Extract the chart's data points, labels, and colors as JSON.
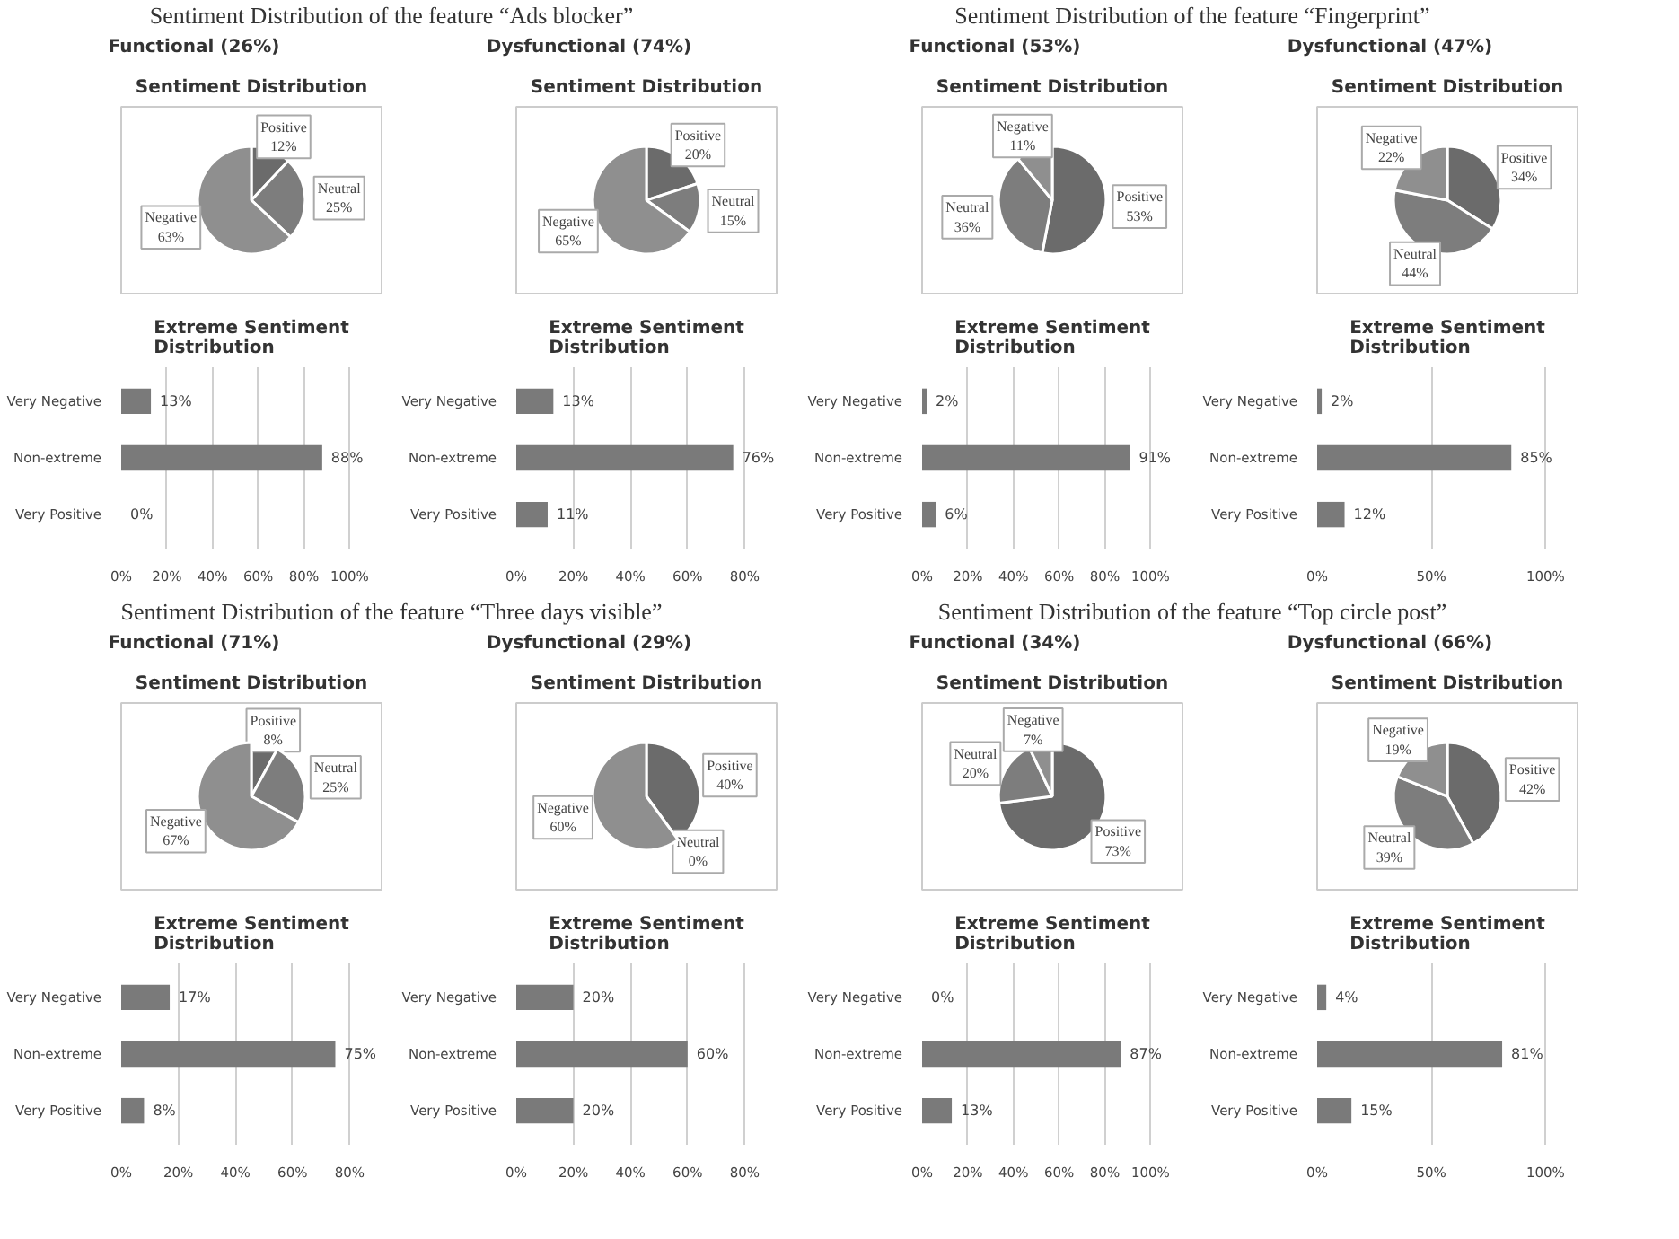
{
  "chart_data": [
    {
      "type": "other",
      "title": "Sentiment Distribution of the feature “Ads blocker”"
    },
    {
      "type": "other",
      "title": "Functional (26%)"
    },
    {
      "type": "pie",
      "title": "Sentiment Distribution",
      "categories": [
        "Positive",
        "Neutral",
        "Negative"
      ],
      "values": [
        12,
        25,
        63
      ],
      "colors": [
        "#6b6b6b",
        "#7d7d7d",
        "#8f8f8f"
      ],
      "value_labels": [
        "12%",
        "25%",
        "63%"
      ]
    },
    {
      "type": "bar",
      "orientation": "horizontal",
      "title": "Extreme Sentiment Distribution",
      "categories": [
        "Very Negative",
        "Non-extreme",
        "Very Positive"
      ],
      "values": [
        13,
        88,
        0
      ],
      "color": "#7a7a7a",
      "value_labels": [
        "13%",
        "88%",
        "0%"
      ],
      "xlim": [
        0,
        100
      ],
      "xticks": [
        {
          "value": 0,
          "label": "0%"
        },
        {
          "value": 20,
          "label": "20%"
        },
        {
          "value": 40,
          "label": "40%"
        },
        {
          "value": 60,
          "label": "60%"
        },
        {
          "value": 80,
          "label": "80%"
        },
        {
          "value": 100,
          "label": "100%"
        }
      ],
      "grid": "x"
    },
    {
      "type": "other",
      "title": "Dysfunctional (74%)"
    },
    {
      "type": "pie",
      "title": "Sentiment Distribution",
      "categories": [
        "Positive",
        "Neutral",
        "Negative"
      ],
      "values": [
        20,
        15,
        65
      ],
      "colors": [
        "#6b6b6b",
        "#7d7d7d",
        "#8f8f8f"
      ],
      "value_labels": [
        "20%",
        "15%",
        "65%"
      ]
    },
    {
      "type": "bar",
      "orientation": "horizontal",
      "title": "Extreme Sentiment Distribution",
      "categories": [
        "Very Negative",
        "Non-extreme",
        "Very Positive"
      ],
      "values": [
        13,
        76,
        11
      ],
      "color": "#7a7a7a",
      "value_labels": [
        "13%",
        "76%",
        "11%"
      ],
      "xlim": [
        0,
        80
      ],
      "xticks": [
        {
          "value": 0,
          "label": "0%"
        },
        {
          "value": 20,
          "label": "20%"
        },
        {
          "value": 40,
          "label": "40%"
        },
        {
          "value": 60,
          "label": "60%"
        },
        {
          "value": 80,
          "label": "80%"
        }
      ],
      "grid": "x"
    },
    {
      "type": "other",
      "title": "Sentiment Distribution of the feature “Fingerprint”"
    },
    {
      "type": "other",
      "title": "Functional (53%)"
    },
    {
      "type": "pie",
      "title": "Sentiment Distribution",
      "categories": [
        "Positive",
        "Neutral",
        "Negative"
      ],
      "values": [
        53,
        36,
        11
      ],
      "colors": [
        "#6b6b6b",
        "#7d7d7d",
        "#8f8f8f"
      ],
      "value_labels": [
        "53%",
        "36%",
        "11%"
      ]
    },
    {
      "type": "bar",
      "orientation": "horizontal",
      "title": "Extreme Sentiment Distribution",
      "categories": [
        "Very Negative",
        "Non-extreme",
        "Very Positive"
      ],
      "values": [
        2,
        91,
        6
      ],
      "color": "#7a7a7a",
      "value_labels": [
        "2%",
        "91%",
        "6%"
      ],
      "xlim": [
        0,
        100
      ],
      "xticks": [
        {
          "value": 0,
          "label": "0%"
        },
        {
          "value": 20,
          "label": "20%"
        },
        {
          "value": 40,
          "label": "40%"
        },
        {
          "value": 60,
          "label": "60%"
        },
        {
          "value": 80,
          "label": "80%"
        },
        {
          "value": 100,
          "label": "100%"
        }
      ],
      "grid": "x"
    },
    {
      "type": "other",
      "title": "Dysfunctional (47%)"
    },
    {
      "type": "pie",
      "title": "Sentiment Distribution",
      "categories": [
        "Positive",
        "Neutral",
        "Negative"
      ],
      "values": [
        34,
        44,
        22
      ],
      "colors": [
        "#6b6b6b",
        "#7d7d7d",
        "#8f8f8f"
      ],
      "value_labels": [
        "34%",
        "44%",
        "22%"
      ]
    },
    {
      "type": "bar",
      "orientation": "horizontal",
      "title": "Extreme Sentiment Distribution",
      "categories": [
        "Very Negative",
        "Non-extreme",
        "Very Positive"
      ],
      "values": [
        2,
        85,
        12
      ],
      "color": "#7a7a7a",
      "value_labels": [
        "2%",
        "85%",
        "12%"
      ],
      "xlim": [
        0,
        100
      ],
      "xticks": [
        {
          "value": 0,
          "label": "0%"
        },
        {
          "value": 50,
          "label": "50%"
        },
        {
          "value": 100,
          "label": "100%"
        }
      ],
      "grid": "x"
    },
    {
      "type": "other",
      "title": "Sentiment Distribution of the feature “Three days visible”"
    },
    {
      "type": "other",
      "title": "Functional (71%)"
    },
    {
      "type": "pie",
      "title": "Sentiment Distribution",
      "categories": [
        "Positive",
        "Neutral",
        "Negative"
      ],
      "values": [
        8,
        25,
        67
      ],
      "colors": [
        "#6b6b6b",
        "#7d7d7d",
        "#8f8f8f"
      ],
      "value_labels": [
        "8%",
        "25%",
        "67%"
      ]
    },
    {
      "type": "bar",
      "orientation": "horizontal",
      "title": "Extreme Sentiment Distribution",
      "categories": [
        "Very Negative",
        "Non-extreme",
        "Very Positive"
      ],
      "values": [
        17,
        75,
        8
      ],
      "color": "#7a7a7a",
      "value_labels": [
        "17%",
        "75%",
        "8%"
      ],
      "xlim": [
        0,
        80
      ],
      "xticks": [
        {
          "value": 0,
          "label": "0%"
        },
        {
          "value": 20,
          "label": "20%"
        },
        {
          "value": 40,
          "label": "40%"
        },
        {
          "value": 60,
          "label": "60%"
        },
        {
          "value": 80,
          "label": "80%"
        }
      ],
      "grid": "x"
    },
    {
      "type": "other",
      "title": "Dysfunctional (29%)"
    },
    {
      "type": "pie",
      "title": "Sentiment Distribution",
      "categories": [
        "Positive",
        "Neutral",
        "Negative"
      ],
      "values": [
        40,
        0,
        60
      ],
      "colors": [
        "#6b6b6b",
        "#7d7d7d",
        "#8f8f8f"
      ],
      "value_labels": [
        "40%",
        "0%",
        "60%"
      ]
    },
    {
      "type": "bar",
      "orientation": "horizontal",
      "title": "Extreme Sentiment Distribution",
      "categories": [
        "Very Negative",
        "Non-extreme",
        "Very Positive"
      ],
      "values": [
        20,
        60,
        20
      ],
      "color": "#7a7a7a",
      "value_labels": [
        "20%",
        "60%",
        "20%"
      ],
      "xlim": [
        0,
        80
      ],
      "xticks": [
        {
          "value": 0,
          "label": "0%"
        },
        {
          "value": 20,
          "label": "20%"
        },
        {
          "value": 40,
          "label": "40%"
        },
        {
          "value": 60,
          "label": "60%"
        },
        {
          "value": 80,
          "label": "80%"
        }
      ],
      "grid": "x"
    },
    {
      "type": "other",
      "title": "Sentiment Distribution of the feature “Top circle post”"
    },
    {
      "type": "other",
      "title": "Functional (34%)"
    },
    {
      "type": "pie",
      "title": "Sentiment Distribution",
      "categories": [
        "Positive",
        "Neutral",
        "Negative"
      ],
      "values": [
        73,
        20,
        7
      ],
      "colors": [
        "#6b6b6b",
        "#7d7d7d",
        "#8f8f8f"
      ],
      "value_labels": [
        "73%",
        "20%",
        "7%"
      ]
    },
    {
      "type": "bar",
      "orientation": "horizontal",
      "title": "Extreme Sentiment Distribution",
      "categories": [
        "Very Negative",
        "Non-extreme",
        "Very Positive"
      ],
      "values": [
        0,
        87,
        13
      ],
      "color": "#7a7a7a",
      "value_labels": [
        "0%",
        "87%",
        "13%"
      ],
      "xlim": [
        0,
        100
      ],
      "xticks": [
        {
          "value": 0,
          "label": "0%"
        },
        {
          "value": 20,
          "label": "20%"
        },
        {
          "value": 40,
          "label": "40%"
        },
        {
          "value": 60,
          "label": "60%"
        },
        {
          "value": 80,
          "label": "80%"
        },
        {
          "value": 100,
          "label": "100%"
        }
      ],
      "grid": "x"
    },
    {
      "type": "other",
      "title": "Dysfunctional (66%)"
    },
    {
      "type": "pie",
      "title": "Sentiment Distribution",
      "categories": [
        "Positive",
        "Neutral",
        "Negative"
      ],
      "values": [
        42,
        39,
        19
      ],
      "colors": [
        "#6b6b6b",
        "#7d7d7d",
        "#8f8f8f"
      ],
      "value_labels": [
        "42%",
        "39%",
        "19%"
      ]
    },
    {
      "type": "bar",
      "orientation": "horizontal",
      "title": "Extreme Sentiment Distribution",
      "categories": [
        "Very Negative",
        "Non-extreme",
        "Very Positive"
      ],
      "values": [
        4,
        81,
        15
      ],
      "color": "#7a7a7a",
      "value_labels": [
        "4%",
        "81%",
        "15%"
      ],
      "xlim": [
        0,
        100
      ],
      "xticks": [
        {
          "value": 0,
          "label": "0%"
        },
        {
          "value": 50,
          "label": "50%"
        },
        {
          "value": 100,
          "label": "100%"
        }
      ],
      "grid": "x"
    }
  ]
}
